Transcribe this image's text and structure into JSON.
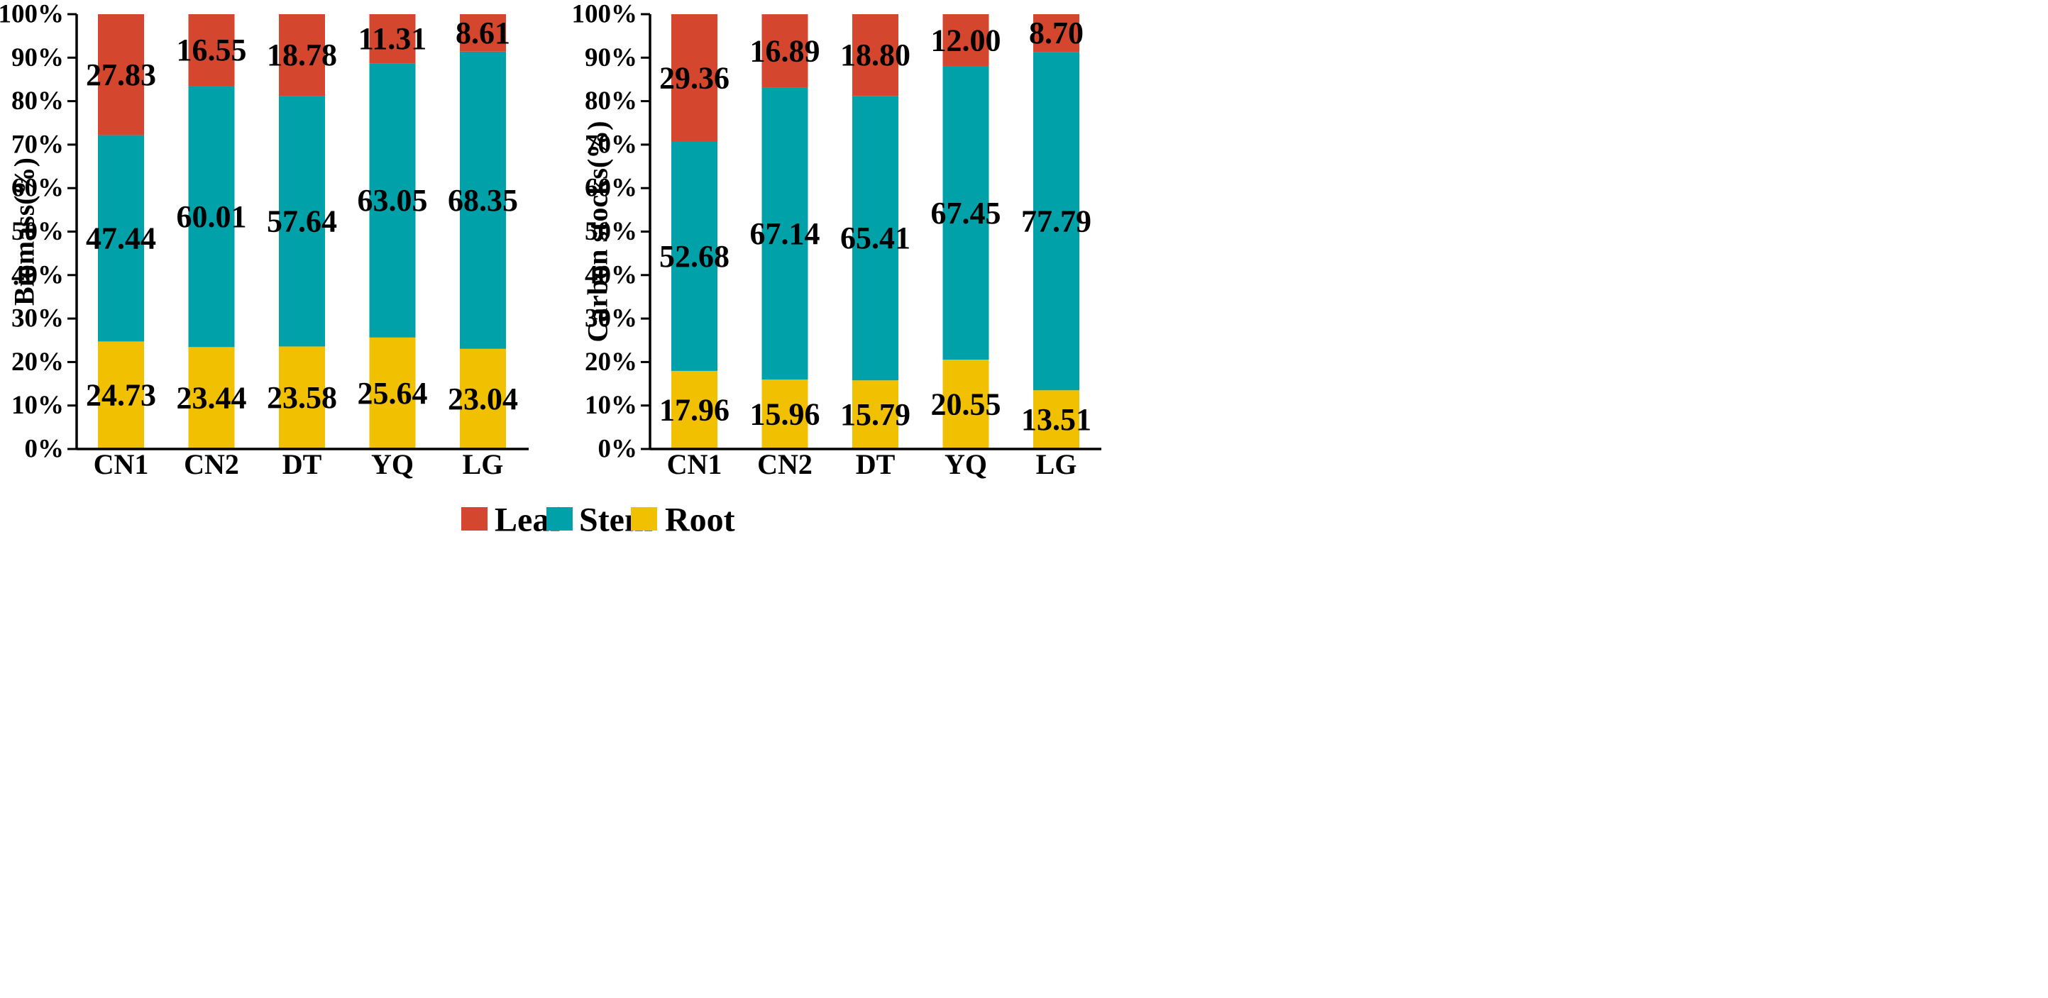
{
  "legend": {
    "items": [
      {
        "key": "leaf",
        "label": "Leaf",
        "color": "#d4472e"
      },
      {
        "key": "stem",
        "label": "Stem",
        "color": "#00a1a9"
      },
      {
        "key": "root",
        "label": "Root",
        "color": "#f1c000"
      }
    ]
  },
  "chart_data": [
    {
      "type": "bar",
      "stacked": true,
      "title": "",
      "xlabel": "",
      "ylabel": "Biomass(%)",
      "ylim": [
        0,
        100
      ],
      "yticks": [
        "0%",
        "10%",
        "20%",
        "30%",
        "40%",
        "50%",
        "60%",
        "70%",
        "80%",
        "90%",
        "100%"
      ],
      "categories": [
        "CN1",
        "CN2",
        "DT",
        "YQ",
        "LG"
      ],
      "series": [
        {
          "name": "Root",
          "color": "#f1c000",
          "values": [
            24.73,
            23.44,
            23.58,
            25.64,
            23.04
          ],
          "labels": [
            "24.73",
            "23.44",
            "23.58",
            "25.64",
            "23.04"
          ]
        },
        {
          "name": "Stem",
          "color": "#00a1a9",
          "values": [
            47.44,
            60.01,
            57.64,
            63.05,
            68.35
          ],
          "labels": [
            "47.44",
            "60.01",
            "57.64",
            "63.05",
            "68.35"
          ]
        },
        {
          "name": "Leaf",
          "color": "#d4472e",
          "values": [
            27.83,
            16.55,
            18.78,
            11.31,
            8.61
          ],
          "labels": [
            "27.83",
            "16.55",
            "18.78",
            "11.31",
            "8.61"
          ]
        }
      ]
    },
    {
      "type": "bar",
      "stacked": true,
      "title": "",
      "xlabel": "",
      "ylabel": "Carbon stocks(%)",
      "ylim": [
        0,
        100
      ],
      "yticks": [
        "0%",
        "10%",
        "20%",
        "30%",
        "40%",
        "50%",
        "60%",
        "70%",
        "80%",
        "90%",
        "100%"
      ],
      "categories": [
        "CN1",
        "CN2",
        "DT",
        "YQ",
        "LG"
      ],
      "series": [
        {
          "name": "Root",
          "color": "#f1c000",
          "values": [
            17.96,
            15.96,
            15.79,
            20.55,
            13.51
          ],
          "labels": [
            "17.96",
            "15.96",
            "15.79",
            "20.55",
            "13.51"
          ]
        },
        {
          "name": "Stem",
          "color": "#00a1a9",
          "values": [
            52.68,
            67.14,
            65.41,
            67.45,
            77.79
          ],
          "labels": [
            "52.68",
            "67.14",
            "65.41",
            "67.45",
            "77.79"
          ]
        },
        {
          "name": "Leaf",
          "color": "#d4472e",
          "values": [
            29.36,
            16.89,
            18.8,
            12.0,
            8.7
          ],
          "labels": [
            "29.36",
            "16.89",
            "18.80",
            "12.00",
            "8.70"
          ]
        }
      ]
    }
  ]
}
